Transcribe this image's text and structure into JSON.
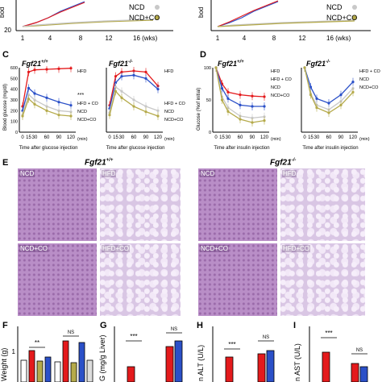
{
  "colors": {
    "hfd": "#e41a1c",
    "hfd_co": "#2b50c8",
    "ncd": "#c8c8c8",
    "ncd_co": "#b5aa4a"
  },
  "top_panels": {
    "left_legend": [
      "NCD",
      "NCD+CO"
    ],
    "right_ylabel": "bod",
    "left_ylabel": "bod",
    "ytick_left": [
      "20"
    ],
    "xticks_left": [
      "1",
      "4",
      "8",
      "12",
      "16 (wks)"
    ],
    "xticks_right": [
      "1",
      "4",
      "8",
      "12",
      "16 (wks)"
    ]
  },
  "panel_C": {
    "label": "C",
    "wt_title": "Fgf21",
    "wt_sup": "+/+",
    "ko_title": "Fgf21",
    "ko_sup": "-/-",
    "ylabel": "Blood glucose (mg/dl)",
    "xlabel": "Time after glucose injection",
    "xunit": "(min)",
    "sig": "***",
    "chart_data": {
      "type": "line",
      "x": [
        0,
        15,
        30,
        60,
        90,
        120
      ],
      "ylim": [
        0,
        600
      ],
      "wt_series": [
        {
          "name": "HFD",
          "values": [
            240,
            560,
            580,
            585,
            590,
            595
          ]
        },
        {
          "name": "HFD + CO",
          "values": [
            200,
            410,
            360,
            320,
            280,
            250
          ]
        },
        {
          "name": "NCD",
          "values": [
            160,
            350,
            300,
            240,
            200,
            190
          ]
        },
        {
          "name": "NCD+CO",
          "values": [
            150,
            310,
            260,
            200,
            160,
            150
          ]
        }
      ],
      "ko_series": [
        {
          "name": "HFD",
          "values": [
            250,
            520,
            560,
            570,
            560,
            430
          ]
        },
        {
          "name": "HFD + CO",
          "values": [
            220,
            460,
            520,
            530,
            500,
            400
          ]
        },
        {
          "name": "NCD",
          "values": [
            180,
            420,
            380,
            300,
            240,
            200
          ]
        },
        {
          "name": "NCD+CO",
          "values": [
            160,
            380,
            320,
            240,
            190,
            150
          ]
        }
      ]
    }
  },
  "panel_D": {
    "label": "D",
    "wt_title": "Fgf21",
    "wt_sup": "+/+",
    "ko_title": "Fgf21",
    "ko_sup": "-/-",
    "ylabel": "Glucose (%of initial)",
    "xlabel": "Time after insulin injection",
    "xunit": "(min)",
    "chart_data": {
      "type": "line",
      "x": [
        0,
        15,
        30,
        60,
        90,
        120
      ],
      "ylim": [
        0,
        100
      ],
      "wt_series": [
        {
          "name": "HFD",
          "values": [
            100,
            75,
            62,
            58,
            56,
            55
          ]
        },
        {
          "name": "HFD + CO",
          "values": [
            100,
            68,
            52,
            42,
            40,
            40
          ]
        },
        {
          "name": "NCD",
          "values": [
            100,
            55,
            38,
            25,
            22,
            24
          ]
        },
        {
          "name": "NCD+CO",
          "values": [
            100,
            50,
            32,
            20,
            15,
            18
          ]
        }
      ],
      "ko_series": [
        {
          "name": "HFD + CO",
          "values": [
            100,
            70,
            52,
            45,
            58,
            78
          ]
        },
        {
          "name": "NCD",
          "values": [
            100,
            60,
            42,
            35,
            48,
            68
          ]
        },
        {
          "name": "NCD+CO",
          "values": [
            100,
            58,
            38,
            30,
            42,
            62
          ]
        }
      ]
    }
  },
  "panel_E": {
    "label": "E",
    "wt_title": "Fgf21",
    "wt_sup": "+/+",
    "ko_title": "Fgf21",
    "ko_sup": "-/-",
    "tags": [
      "NCD",
      "HFD",
      "NCD+CO",
      "HFD+CO"
    ]
  },
  "panel_F": {
    "label": "F",
    "ylabel": "Weight (g)",
    "ytick": "1",
    "sig": [
      "**",
      "NS"
    ]
  },
  "panel_G": {
    "label": "G",
    "ylabel": "G (mg/g Liver)",
    "sig": [
      "***",
      "NS"
    ]
  },
  "panel_H": {
    "label": "H",
    "ylabel": "n ALT (U/L)",
    "sig": [
      "***",
      "NS"
    ]
  },
  "panel_I": {
    "label": "I",
    "ylabel": "n AST (U/L)",
    "sig": [
      "***",
      "NS"
    ]
  }
}
